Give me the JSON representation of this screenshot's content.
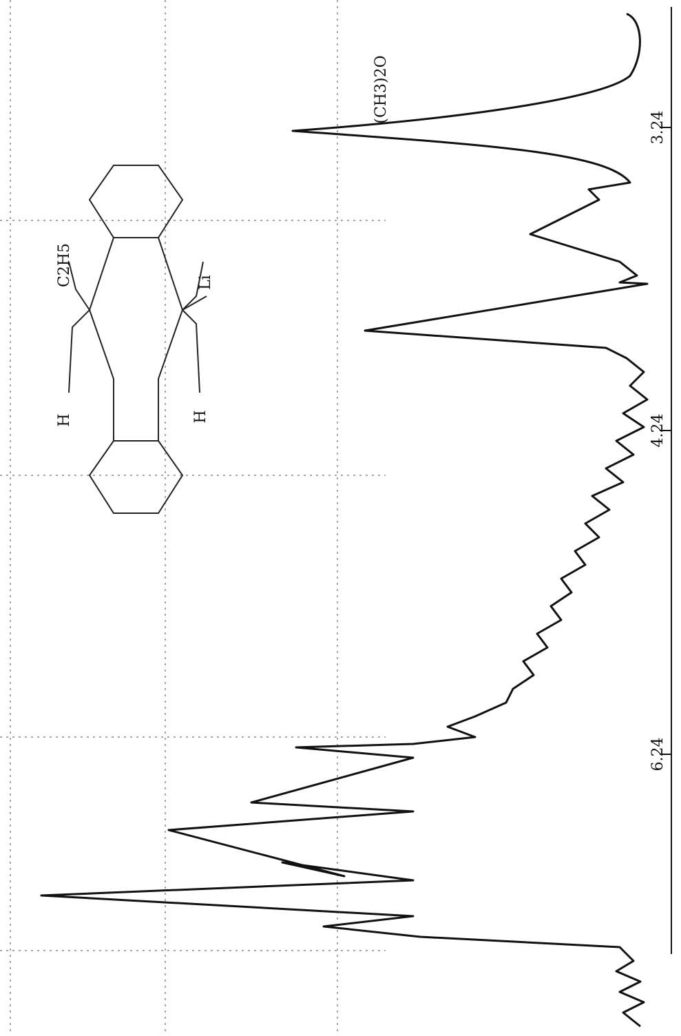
{
  "spectrum": {
    "axis_ticks": [
      "3.24",
      "4.24",
      "6.24"
    ],
    "peak_label": "(CH3)2O"
  },
  "structure": {
    "labels": [
      "C2H5",
      "H",
      "Li",
      "H"
    ]
  }
}
